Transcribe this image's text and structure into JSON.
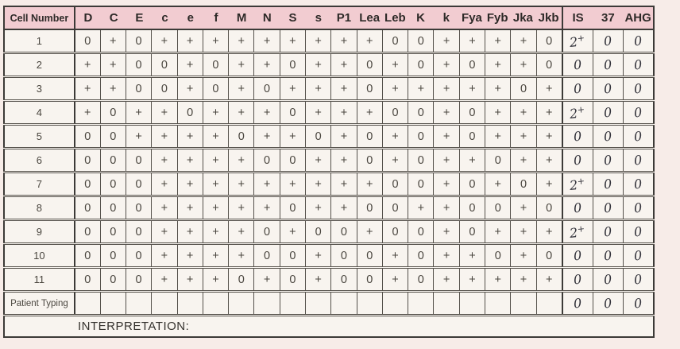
{
  "header": {
    "corner_label": "Cell Number",
    "antigen_columns": [
      "D",
      "C",
      "E",
      "c",
      "e",
      "f",
      "M",
      "N",
      "S",
      "s",
      "P1",
      "Lea",
      "Leb",
      "K",
      "k",
      "Fya",
      "Fyb",
      "Jka",
      "Jkb"
    ],
    "phase_columns": [
      "IS",
      "37",
      "AHG"
    ]
  },
  "rows": [
    {
      "label": "1",
      "antigens": [
        "0",
        "+",
        "0",
        "+",
        "+",
        "+",
        "+",
        "+",
        "+",
        "+",
        "+",
        "+",
        "0",
        "0",
        "+",
        "+",
        "+",
        "+",
        "0"
      ],
      "phases": [
        "2+",
        "0",
        "0"
      ]
    },
    {
      "label": "2",
      "antigens": [
        "+",
        "+",
        "0",
        "0",
        "+",
        "0",
        "+",
        "+",
        "0",
        "+",
        "+",
        "0",
        "+",
        "0",
        "+",
        "0",
        "+",
        "+",
        "0"
      ],
      "phases": [
        "0",
        "0",
        "0"
      ]
    },
    {
      "label": "3",
      "antigens": [
        "+",
        "+",
        "0",
        "0",
        "+",
        "0",
        "+",
        "0",
        "+",
        "+",
        "+",
        "0",
        "+",
        "+",
        "+",
        "+",
        "+",
        "0",
        "+"
      ],
      "phases": [
        "0",
        "0",
        "0"
      ]
    },
    {
      "label": "4",
      "antigens": [
        "+",
        "0",
        "+",
        "+",
        "0",
        "+",
        "+",
        "+",
        "0",
        "+",
        "+",
        "+",
        "0",
        "0",
        "+",
        "0",
        "+",
        "+",
        "+"
      ],
      "phases": [
        "2+",
        "0",
        "0"
      ]
    },
    {
      "label": "5",
      "antigens": [
        "0",
        "0",
        "+",
        "+",
        "+",
        "+",
        "0",
        "+",
        "+",
        "0",
        "+",
        "0",
        "+",
        "0",
        "+",
        "0",
        "+",
        "+",
        "+"
      ],
      "phases": [
        "0",
        "0",
        "0"
      ]
    },
    {
      "label": "6",
      "antigens": [
        "0",
        "0",
        "0",
        "+",
        "+",
        "+",
        "+",
        "0",
        "0",
        "+",
        "+",
        "0",
        "+",
        "0",
        "+",
        "+",
        "0",
        "+",
        "+"
      ],
      "phases": [
        "0",
        "0",
        "0"
      ]
    },
    {
      "label": "7",
      "antigens": [
        "0",
        "0",
        "0",
        "+",
        "+",
        "+",
        "+",
        "+",
        "+",
        "+",
        "+",
        "+",
        "0",
        "0",
        "+",
        "0",
        "+",
        "0",
        "+"
      ],
      "phases": [
        "2+",
        "0",
        "0"
      ]
    },
    {
      "label": "8",
      "antigens": [
        "0",
        "0",
        "0",
        "+",
        "+",
        "+",
        "+",
        "+",
        "0",
        "+",
        "+",
        "0",
        "0",
        "+",
        "+",
        "0",
        "0",
        "+",
        "0"
      ],
      "phases": [
        "0",
        "0",
        "0"
      ]
    },
    {
      "label": "9",
      "antigens": [
        "0",
        "0",
        "0",
        "+",
        "+",
        "+",
        "+",
        "0",
        "+",
        "0",
        "0",
        "+",
        "0",
        "0",
        "+",
        "0",
        "+",
        "+",
        "+"
      ],
      "phases": [
        "2+",
        "0",
        "0"
      ]
    },
    {
      "label": "10",
      "antigens": [
        "0",
        "0",
        "0",
        "+",
        "+",
        "+",
        "+",
        "0",
        "0",
        "+",
        "0",
        "0",
        "+",
        "0",
        "+",
        "+",
        "0",
        "+",
        "0"
      ],
      "phases": [
        "0",
        "0",
        "0"
      ]
    },
    {
      "label": "11",
      "antigens": [
        "0",
        "0",
        "0",
        "+",
        "+",
        "+",
        "0",
        "+",
        "0",
        "+",
        "0",
        "0",
        "+",
        "0",
        "+",
        "+",
        "+",
        "+",
        "+"
      ],
      "phases": [
        "0",
        "0",
        "0"
      ]
    },
    {
      "label": "Patient Typing",
      "antigens": [
        "",
        "",
        "",
        "",
        "",
        "",
        "",
        "",
        "",
        "",
        "",
        "",
        "",
        "",
        "",
        "",
        "",
        "",
        ""
      ],
      "phases": [
        "0",
        "0",
        "0"
      ]
    }
  ],
  "footer": {
    "interpretation_label": "INTERPRETATION:"
  },
  "colors": {
    "header_pink": "#f2ccd1",
    "cell_bg": "#f8f4ef",
    "page_bg": "#f7ece8",
    "grid_line": "#55514b",
    "heavy_line": "#3c3a37",
    "handwriting": "#33333b"
  }
}
